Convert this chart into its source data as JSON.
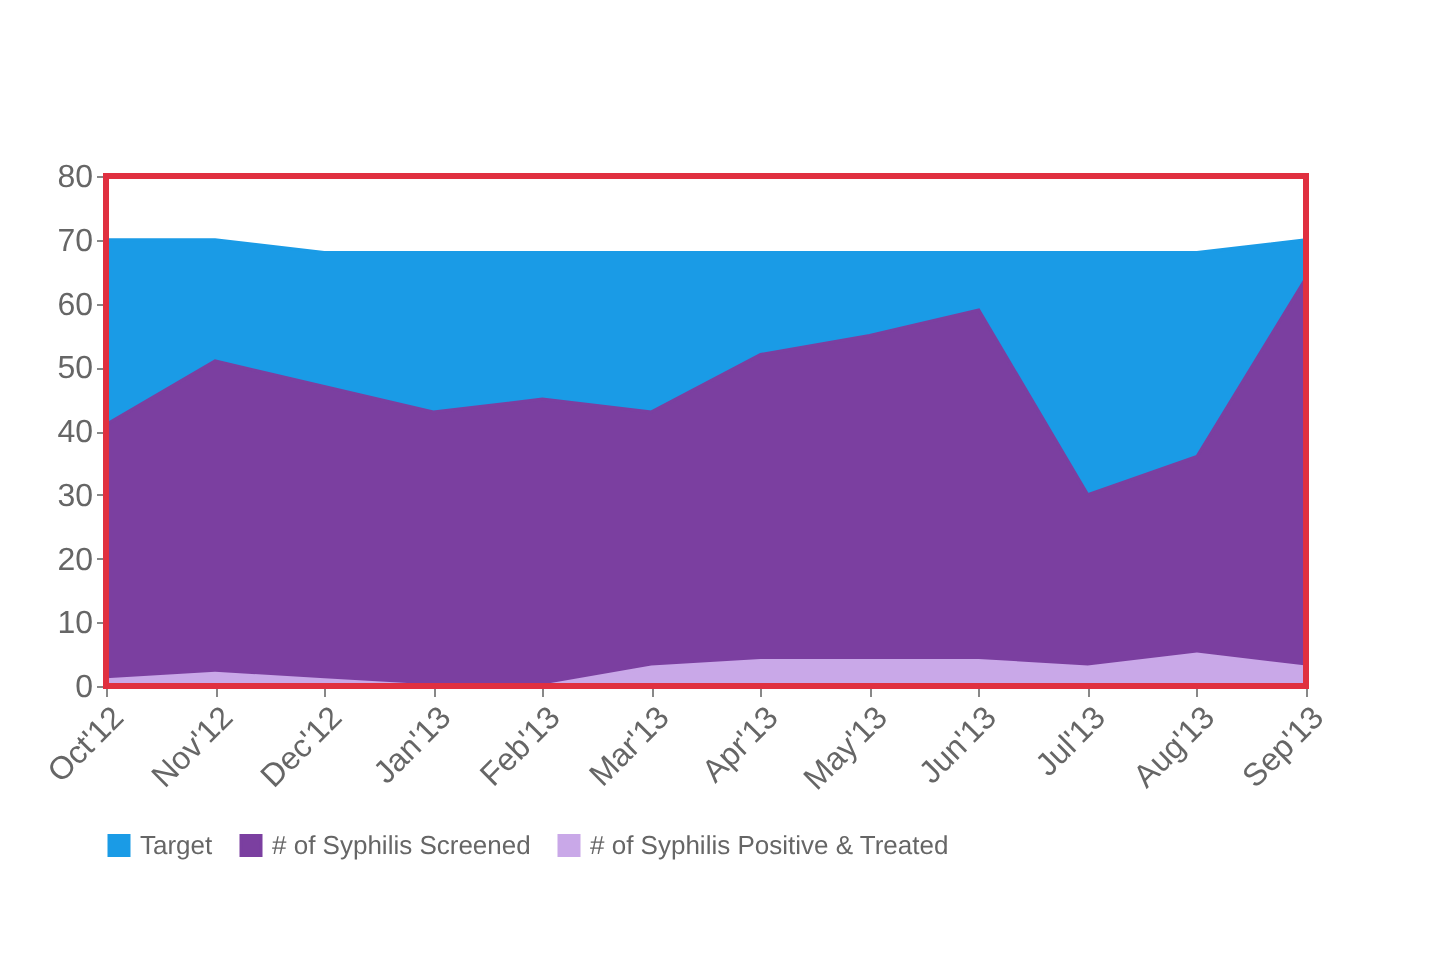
{
  "chart_data": {
    "type": "area",
    "categories": [
      "Oct'12",
      "Nov'12",
      "Dec'12",
      "Jan'13",
      "Feb'13",
      "Mar'13",
      "Apr'13",
      "May'13",
      "Jun'13",
      "Jul'13",
      "Aug'13",
      "Sep'13"
    ],
    "series": [
      {
        "name": "Target",
        "color": "#1a9be6",
        "values": [
          70,
          70,
          68,
          68,
          68,
          68,
          68,
          68,
          68,
          68,
          68,
          70
        ]
      },
      {
        "name": "# of Syphilis Screened",
        "color": "#7b3fa0",
        "values": [
          41,
          51,
          47,
          43,
          45,
          43,
          52,
          55,
          59,
          30,
          36,
          64
        ]
      },
      {
        "name": "# of Syphilis Positive & Treated",
        "color": "#c9a8e8",
        "values": [
          1,
          2,
          1,
          0,
          0,
          3,
          4,
          4,
          4,
          3,
          5,
          3
        ]
      }
    ],
    "ylim": [
      0,
      80
    ],
    "yticks": [
      0,
      10,
      20,
      30,
      40,
      50,
      60,
      70,
      80
    ],
    "grid": false,
    "legend": "bottom"
  }
}
